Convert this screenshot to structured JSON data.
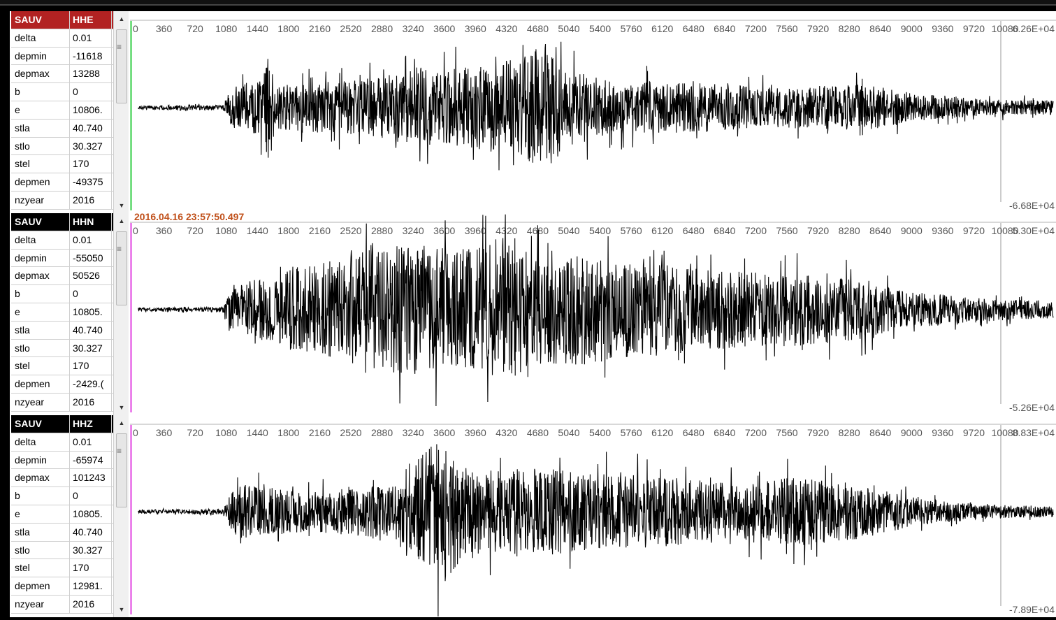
{
  "panels": [
    {
      "station": "SAUV",
      "channel": "HHE",
      "header_color": "#b22222",
      "trace_edge_color": "#2ecc40",
      "timestamp": "",
      "fields": [
        {
          "key": "delta",
          "value": "0.01"
        },
        {
          "key": "depmin",
          "value": "-11618"
        },
        {
          "key": "depmax",
          "value": "13288"
        },
        {
          "key": "b",
          "value": "0"
        },
        {
          "key": "e",
          "value": "10806."
        },
        {
          "key": "stla",
          "value": "40.740"
        },
        {
          "key": "stlo",
          "value": "30.327"
        },
        {
          "key": "stel",
          "value": "170"
        },
        {
          "key": "depmen",
          "value": "-49375"
        },
        {
          "key": "nzyear",
          "value": "2016"
        }
      ],
      "amp_top": "6.26E+04",
      "amp_bottom": "-6.68E+04",
      "zero_label": "0"
    },
    {
      "station": "SAUV",
      "channel": "HHN",
      "header_color": "#000000",
      "trace_edge_color": "#e040e0",
      "timestamp": "2016.04.16 23:57:50.497",
      "fields": [
        {
          "key": "delta",
          "value": "0.01"
        },
        {
          "key": "depmin",
          "value": "-55050"
        },
        {
          "key": "depmax",
          "value": "50526"
        },
        {
          "key": "b",
          "value": "0"
        },
        {
          "key": "e",
          "value": "10805."
        },
        {
          "key": "stla",
          "value": "40.740"
        },
        {
          "key": "stlo",
          "value": "30.327"
        },
        {
          "key": "stel",
          "value": "170"
        },
        {
          "key": "depmen",
          "value": "-2429.("
        },
        {
          "key": "nzyear",
          "value": "2016"
        }
      ],
      "amp_top": "5.30E+04",
      "amp_bottom": "-5.26E+04",
      "zero_label": ""
    },
    {
      "station": "SAUV",
      "channel": "HHZ",
      "header_color": "#000000",
      "trace_edge_color": "#e040e0",
      "timestamp": "",
      "fields": [
        {
          "key": "delta",
          "value": "0.01"
        },
        {
          "key": "depmin",
          "value": "-65974"
        },
        {
          "key": "depmax",
          "value": "101243"
        },
        {
          "key": "b",
          "value": "0"
        },
        {
          "key": "e",
          "value": "10805."
        },
        {
          "key": "stla",
          "value": "40.740"
        },
        {
          "key": "stlo",
          "value": "30.327"
        },
        {
          "key": "stel",
          "value": "170"
        },
        {
          "key": "depmen",
          "value": "12981."
        },
        {
          "key": "nzyear",
          "value": "2016"
        }
      ],
      "amp_top": "8.83E+04",
      "amp_bottom": "-7.89E+04",
      "zero_label": ""
    }
  ],
  "time_axis": {
    "ticks": [
      "0",
      "360",
      "720",
      "1080",
      "1440",
      "1800",
      "2160",
      "2520",
      "2880",
      "3240",
      "3600",
      "3960",
      "4320",
      "4680",
      "5040",
      "5400",
      "5760",
      "6120",
      "6480",
      "6840",
      "7200",
      "7560",
      "7920",
      "8280",
      "8640",
      "9000",
      "9360",
      "9720",
      "10080"
    ]
  },
  "scroll_glyphs": {
    "up": "▲",
    "down": "▼",
    "grip": "≡"
  },
  "colors": {
    "waveform": "#000000",
    "cursor_line": "#999999",
    "axis_text": "#555555"
  },
  "chart_data": [
    {
      "type": "line",
      "title": "",
      "series": [
        {
          "name": "HHE",
          "envelope_bursts": [
            [
              1440,
              0.55
            ],
            [
              3600,
              0.5
            ],
            [
              4800,
              0.7
            ],
            [
              3000,
              0.4
            ],
            [
              8600,
              0.3
            ]
          ]
        }
      ],
      "xlabel": "",
      "ylabel": "",
      "xlim": [
        0,
        10800
      ],
      "ylim": [
        -66800,
        62600
      ]
    },
    {
      "type": "line",
      "title": "",
      "series": [
        {
          "name": "HHN"
        }
      ],
      "xlabel": "",
      "ylabel": "",
      "xlim": [
        0,
        10800
      ],
      "ylim": [
        -52600,
        53000
      ]
    },
    {
      "type": "line",
      "title": "",
      "series": [
        {
          "name": "HHZ"
        }
      ],
      "xlabel": "",
      "ylabel": "",
      "xlim": [
        0,
        10800
      ],
      "ylim": [
        -78900,
        88300
      ]
    }
  ]
}
